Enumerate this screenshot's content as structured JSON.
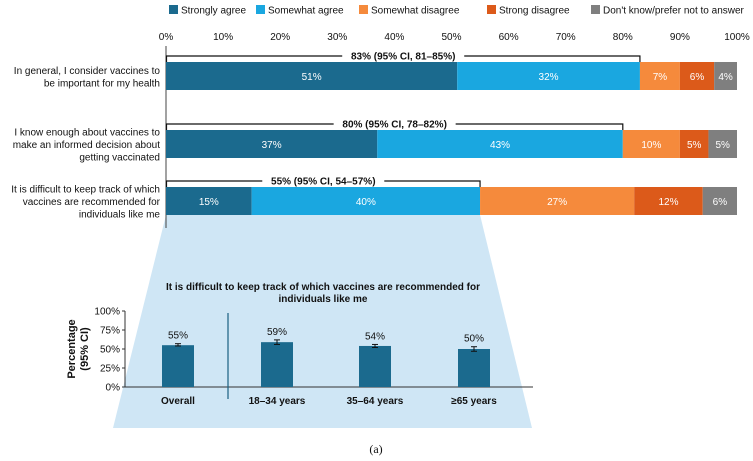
{
  "colors": {
    "strongly_agree": "#1b6a8e",
    "somewhat_agree": "#1aa7e0",
    "somewhat_disagree": "#f58a3c",
    "strong_disagree": "#dc5a1a",
    "dont_know": "#7f7f7f",
    "inset_bar": "#1b6a8e",
    "inset_bg": "#cfe6f5"
  },
  "chart_data": [
    {
      "type": "bar",
      "orientation": "horizontal",
      "stacked": true,
      "legend_position": "top",
      "xlim": [
        0,
        100
      ],
      "x_tick_labels": [
        "0%",
        "10%",
        "20%",
        "30%",
        "40%",
        "50%",
        "60%",
        "70%",
        "80%",
        "90%",
        "100%"
      ],
      "categories": [
        "In general, I consider vaccines to be important for my health",
        "I know enough about vaccines to make an informed decision about getting vaccinated",
        "It is difficult to keep track of which vaccines are recommended for individuals like me"
      ],
      "category_lines": [
        [
          "In general, I consider vaccines to",
          "be important for my health"
        ],
        [
          "I know enough about vaccines to",
          "make an informed decision about",
          "getting vaccinated"
        ],
        [
          "It is difficult to keep track of which",
          "vaccines are recommended for",
          "individuals like me"
        ]
      ],
      "series": [
        {
          "name": "Strongly agree",
          "values": [
            51,
            37,
            15
          ],
          "labels": [
            "51%",
            "37%",
            "15%"
          ],
          "color_key": "strongly_agree"
        },
        {
          "name": "Somewhat agree",
          "values": [
            32,
            43,
            40
          ],
          "labels": [
            "32%",
            "43%",
            "40%"
          ],
          "color_key": "somewhat_agree"
        },
        {
          "name": "Somewhat disagree",
          "values": [
            7,
            10,
            27
          ],
          "labels": [
            "7%",
            "10%",
            "27%"
          ],
          "color_key": "somewhat_disagree"
        },
        {
          "name": "Strong disagree",
          "values": [
            6,
            5,
            12
          ],
          "labels": [
            "6%",
            "5%",
            "12%"
          ],
          "color_key": "strong_disagree"
        },
        {
          "name": "Don't know/prefer not to answer",
          "values": [
            4,
            5,
            6
          ],
          "labels": [
            "4%",
            "5%",
            "6%"
          ],
          "color_key": "dont_know"
        }
      ],
      "bracket_annotations": [
        {
          "text": "83% (95% CI, 81–85%)",
          "span_to": 83
        },
        {
          "text": "80% (95% CI, 78–82%)",
          "span_to": 80
        },
        {
          "text": "55% (95% CI, 54–57%)",
          "span_to": 55
        }
      ]
    },
    {
      "type": "bar",
      "title_lines": [
        "It is difficult to keep track of which vaccines are recommended for",
        "individuals like me"
      ],
      "ylabel_lines": [
        "Percentage",
        "(95% CI)"
      ],
      "ylim": [
        0,
        100
      ],
      "y_tick_labels": [
        "0%",
        "25%",
        "50%",
        "75%",
        "100%"
      ],
      "y_tick_values": [
        0,
        25,
        50,
        75,
        100
      ],
      "categories": [
        "Overall",
        "18–34 years",
        "35–64 years",
        "≥65 years"
      ],
      "values": [
        55,
        59,
        54,
        50
      ],
      "error_low": [
        54,
        56,
        52,
        47
      ],
      "error_high": [
        57,
        62,
        56,
        53
      ],
      "labels": [
        "55%",
        "59%",
        "54%",
        "50%"
      ]
    }
  ],
  "panel_label": "(a)"
}
